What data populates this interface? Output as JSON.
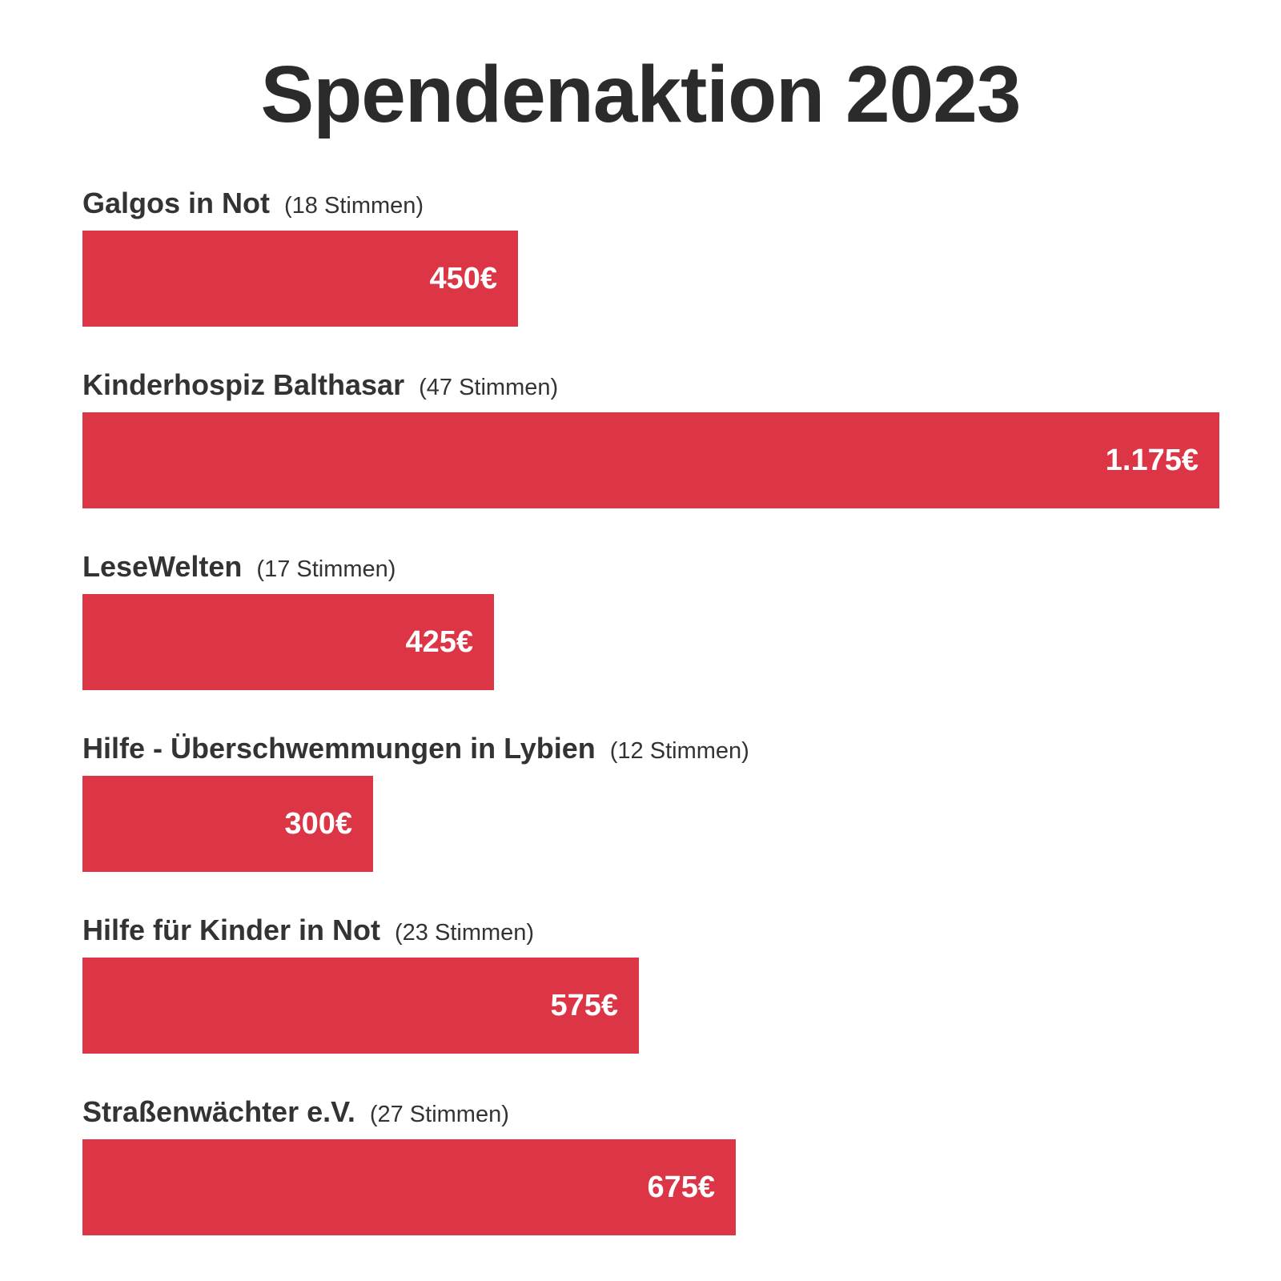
{
  "title": "Spendenaktion 2023",
  "colors": {
    "bar": "#dc3545",
    "text": "#2b2b2b",
    "value_text": "#ffffff"
  },
  "items": [
    {
      "name": "Galgos in Not",
      "votes_label": "(18 Stimmen)",
      "value_label": "450€"
    },
    {
      "name": "Kinderhospiz Balthasar",
      "votes_label": "(47 Stimmen)",
      "value_label": "1.175€"
    },
    {
      "name": "LeseWelten",
      "votes_label": "(17 Stimmen)",
      "value_label": "425€"
    },
    {
      "name": "Hilfe - Überschwemmungen in Lybien",
      "votes_label": "(12 Stimmen)",
      "value_label": "300€"
    },
    {
      "name": "Hilfe für Kinder in Not",
      "votes_label": "(23 Stimmen)",
      "value_label": "575€"
    },
    {
      "name": "Straßenwächter e.V.",
      "votes_label": "(27 Stimmen)",
      "value_label": "675€"
    }
  ],
  "chart_data": {
    "type": "bar",
    "orientation": "horizontal",
    "title": "Spendenaktion 2023",
    "categories": [
      "Galgos in Not",
      "Kinderhospiz Balthasar",
      "LeseWelten",
      "Hilfe - Überschwemmungen in Lybien",
      "Hilfe für Kinder in Not",
      "Straßenwächter e.V."
    ],
    "values": [
      450,
      1175,
      425,
      300,
      575,
      675
    ],
    "votes": [
      18,
      47,
      17,
      12,
      23,
      27
    ],
    "unit": "€",
    "xlim": [
      0,
      1175
    ],
    "grid": false,
    "legend": "none"
  }
}
